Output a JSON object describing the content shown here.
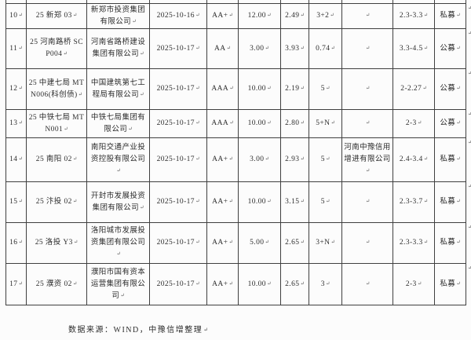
{
  "table": {
    "columns": [
      "num",
      "name",
      "issuer",
      "date",
      "rating",
      "amount",
      "rate",
      "term",
      "guarantor",
      "range",
      "type"
    ],
    "rows": [
      {
        "num": "10",
        "name": "25 新郑 03",
        "issuer": "新郑市投资集团有限公司",
        "date": "2025-10-16",
        "rating": "AA+",
        "amount": "12.00",
        "rate": "2.49",
        "term": "3+2",
        "guarantor": "",
        "range": "2.3-3.3",
        "type": "私募"
      },
      {
        "num": "11",
        "name": "25 河南路桥 SCP004",
        "issuer": "河南省路桥建设集团有限公司",
        "date": "2025-10-17",
        "rating": "AA",
        "amount": "3.00",
        "rate": "3.93",
        "term": "0.74",
        "guarantor": "",
        "range": "3.3-4.5",
        "type": "公募"
      },
      {
        "num": "12",
        "name": "25 中建七局 MTN006(科创债)",
        "issuer": "中国建筑第七工程局有限公司",
        "date": "2025-10-17",
        "rating": "AAA",
        "amount": "10.00",
        "rate": "2.19",
        "term": "5",
        "guarantor": "",
        "range": "2-2.27",
        "type": "公募"
      },
      {
        "num": "13",
        "name": "25 中铁七局 MTN001",
        "issuer": "中铁七局集团有限公司",
        "date": "2025-10-17",
        "rating": "AAA",
        "amount": "10.00",
        "rate": "2.80",
        "term": "5+N",
        "guarantor": "",
        "range": "2-3",
        "type": "公募"
      },
      {
        "num": "14",
        "name": "25 南阳 02",
        "issuer": "南阳交通产业投资控股有限公司",
        "date": "2025-10-17",
        "rating": "AA+",
        "amount": "3.00",
        "rate": "2.93",
        "term": "5",
        "guarantor": "河南中豫信用增进有限公司",
        "range": "2.4-3.4",
        "type": "私募"
      },
      {
        "num": "15",
        "name": "25 汴投 02",
        "issuer": "开封市发展投资集团有限公司",
        "date": "2025-10-17",
        "rating": "AA+",
        "amount": "10.00",
        "rate": "3.15",
        "term": "5",
        "guarantor": "",
        "range": "2.3-3.7",
        "type": "私募"
      },
      {
        "num": "16",
        "name": "25 洛投 Y3",
        "issuer": "洛阳城市发展投资集团有限公司",
        "date": "2025-10-17",
        "rating": "AA+",
        "amount": "5.00",
        "rate": "2.65",
        "term": "3+N",
        "guarantor": "",
        "range": "2.3-3.3",
        "type": "私募"
      },
      {
        "num": "17",
        "name": "25 濮资 02",
        "issuer": "濮阳市国有资本运营集团有限公司",
        "date": "2025-10-17",
        "rating": "AA+",
        "amount": "10.00",
        "rate": "2.65",
        "term": "3",
        "guarantor": "",
        "range": "2-3",
        "type": "私募"
      }
    ]
  },
  "footer": {
    "source_note": "数据来源：WIND，中豫信增整理"
  },
  "marks": {
    "eol_char": "↵"
  },
  "colors": {
    "border": "#3f3f3f",
    "text": "#2d2d2d",
    "background": "#fcfcfc"
  }
}
